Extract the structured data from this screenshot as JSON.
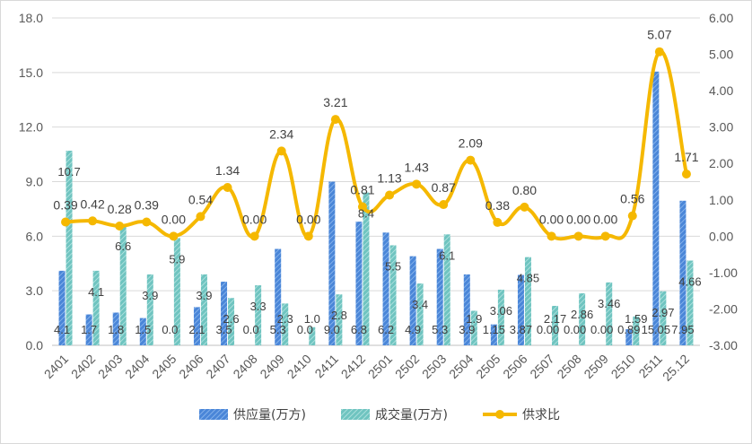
{
  "chart_data": {
    "type": "bar+line",
    "categories": [
      "2401",
      "2402",
      "2403",
      "2404",
      "2405",
      "2406",
      "2407",
      "2408",
      "2409",
      "2410",
      "2411",
      "2412",
      "2501",
      "2502",
      "2503",
      "2504",
      "2505",
      "2506",
      "2507",
      "2508",
      "2509",
      "2510",
      "2511",
      "25.12"
    ],
    "series": [
      {
        "name": "供应量(万方)",
        "type": "bar",
        "axis": "left",
        "color": "#4a86d8",
        "values": [
          4.1,
          1.7,
          1.8,
          1.5,
          0.0,
          2.1,
          3.5,
          0.0,
          5.3,
          0.0,
          9.0,
          6.8,
          6.2,
          4.9,
          5.3,
          3.9,
          1.15,
          3.87,
          0.0,
          0.0,
          0.0,
          0.89,
          15.05,
          7.95
        ],
        "labels": [
          "4.1",
          "1.7",
          "1.8",
          "1.5",
          "0.0",
          "2.1",
          "3.5",
          "0.0",
          "5.3",
          "0.0",
          "9.0",
          "6.8",
          "6.2",
          "4.9",
          "5.3",
          "3.9",
          "1.15",
          "3.87",
          "0.00",
          "0.00",
          "0.00",
          "0.89",
          "15.05",
          "7.95"
        ]
      },
      {
        "name": "成交量(万方)",
        "type": "bar",
        "axis": "left",
        "color": "#6fc4c0",
        "values": [
          10.7,
          4.1,
          6.6,
          3.9,
          5.9,
          3.9,
          2.6,
          3.3,
          2.3,
          1.0,
          2.8,
          8.4,
          5.5,
          3.4,
          6.1,
          1.9,
          3.06,
          4.85,
          2.17,
          2.86,
          3.46,
          1.59,
          2.97,
          4.66
        ],
        "labels": [
          "10.7",
          "4.1",
          "6.6",
          "3.9",
          "5.9",
          "3.9",
          "2.6",
          "3.3",
          "2.3",
          "1.0",
          "2.8",
          "8.4",
          "5.5",
          "3.4",
          "6.1",
          "1.9",
          "3.06",
          "4.85",
          "2.17",
          "2.86",
          "3.46",
          "1.59",
          "2.97",
          "4.66"
        ]
      },
      {
        "name": "供求比",
        "type": "line",
        "axis": "right",
        "color": "#f5b800",
        "values": [
          0.39,
          0.42,
          0.28,
          0.39,
          0.0,
          0.54,
          1.34,
          0.0,
          2.34,
          0.0,
          3.21,
          0.81,
          1.13,
          1.43,
          0.87,
          2.09,
          0.38,
          0.8,
          0.0,
          0.0,
          0.0,
          0.56,
          5.07,
          1.71
        ],
        "labels": [
          "0.39",
          "0.42",
          "0.28",
          "0.39",
          "0.00",
          "0.54",
          "1.34",
          "0.00",
          "2.34",
          "0.00",
          "3.21",
          "0.81",
          "1.13",
          "1.43",
          "0.87",
          "2.09",
          "0.38",
          "0.80",
          "0.00",
          "0.00",
          "0.00",
          "0.56",
          "5.07",
          "1.71"
        ]
      }
    ],
    "left_axis": {
      "min": 0,
      "max": 18,
      "step": 3,
      "ticks": [
        "0.0",
        "3.0",
        "6.0",
        "9.0",
        "12.0",
        "15.0",
        "18.0"
      ]
    },
    "right_axis": {
      "min": -3,
      "max": 6,
      "step": 1,
      "ticks": [
        "-3.00",
        "-2.00",
        "-1.00",
        "0.00",
        "1.00",
        "2.00",
        "3.00",
        "4.00",
        "5.00",
        "6.00"
      ]
    },
    "grid": true,
    "legend_position": "bottom",
    "title": ""
  }
}
